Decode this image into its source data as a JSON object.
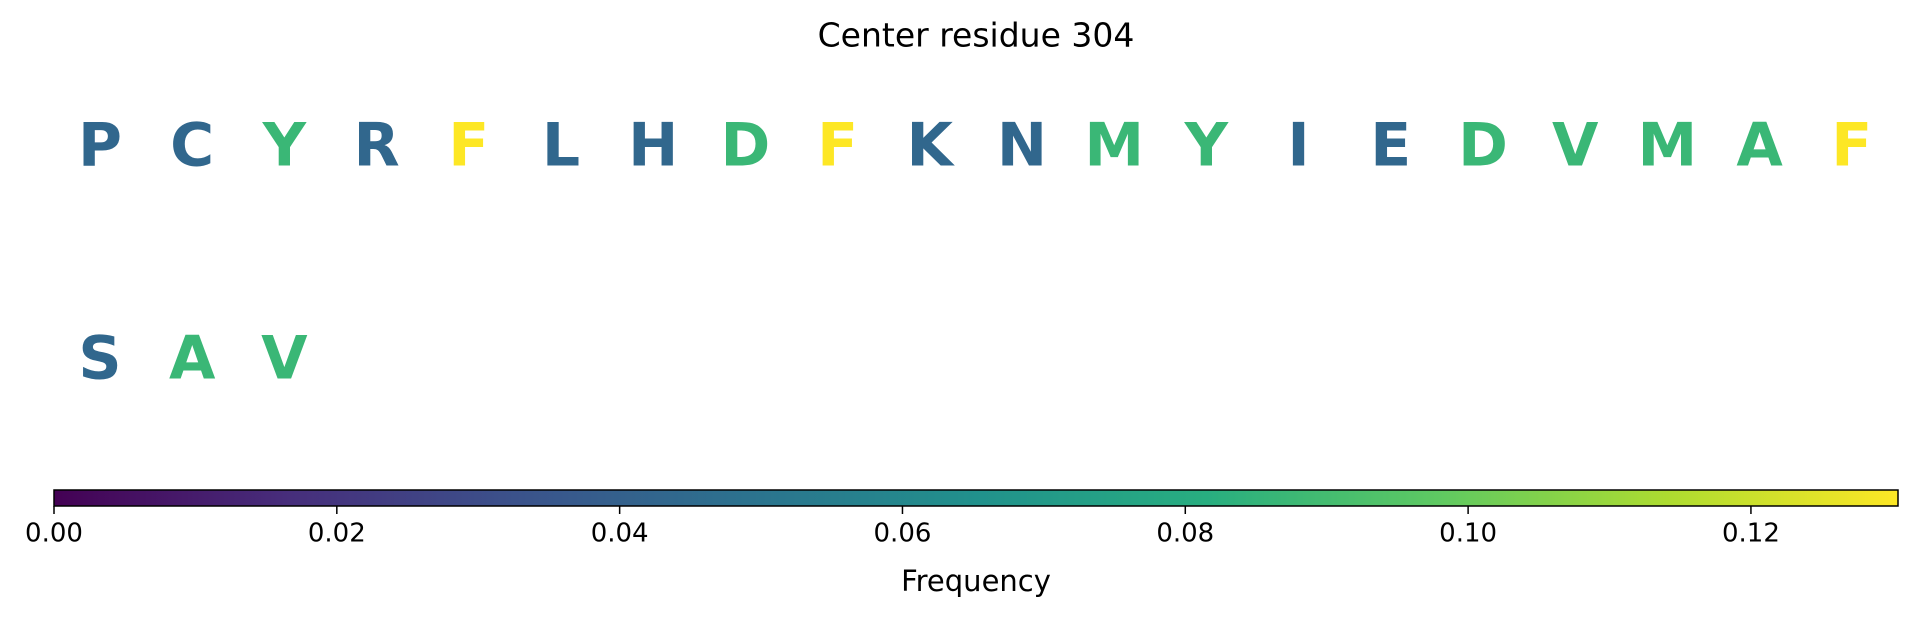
{
  "chart_data": {
    "type": "letters",
    "title": "Center residue 304",
    "categories": [
      "P",
      "C",
      "Y",
      "R",
      "F",
      "L",
      "H",
      "D",
      "F",
      "K",
      "N",
      "M",
      "Y",
      "I",
      "E",
      "D",
      "V",
      "M",
      "A",
      "F",
      "S",
      "A",
      "V"
    ],
    "values": [
      0.0435,
      0.0435,
      0.087,
      0.0435,
      0.1304,
      0.0435,
      0.0435,
      0.087,
      0.1304,
      0.0435,
      0.0435,
      0.087,
      0.087,
      0.0435,
      0.0435,
      0.087,
      0.087,
      0.087,
      0.087,
      0.1304,
      0.0435,
      0.087,
      0.087
    ],
    "colormap": "viridis",
    "xlim": [
      0,
      0.1304
    ],
    "xticks": [
      {
        "value": 0,
        "label": "0.00"
      },
      {
        "value": 0.02,
        "label": "0.02"
      },
      {
        "value": 0.04,
        "label": "0.04"
      },
      {
        "value": 0.06,
        "label": "0.06"
      },
      {
        "value": 0.08,
        "label": "0.08"
      },
      {
        "value": 0.1,
        "label": "0.10"
      },
      {
        "value": 0.12,
        "label": "0.12"
      }
    ],
    "xlabel": "Frequency"
  }
}
